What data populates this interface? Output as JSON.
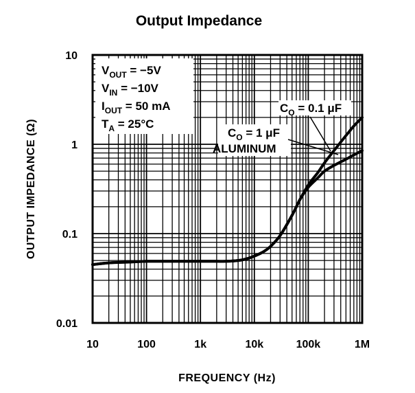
{
  "chart_data": {
    "type": "line",
    "title": "Output Impedance",
    "xlabel": "FREQUENCY (Hz)",
    "ylabel": "OUTPUT IMPEDANCE (Ω)",
    "x_scale": "log",
    "y_scale": "log",
    "xlim": [
      10,
      1000000
    ],
    "ylim": [
      0.01,
      10
    ],
    "x_ticks": [
      10,
      100,
      1000,
      10000,
      100000,
      1000000
    ],
    "x_tick_labels": [
      "10",
      "100",
      "1k",
      "10k",
      "100k",
      "1M"
    ],
    "y_ticks": [
      0.01,
      0.1,
      1,
      10
    ],
    "y_tick_labels": [
      "0.01",
      "0.1",
      "1",
      "10"
    ],
    "grid": true,
    "legend": "none",
    "conditions": {
      "vout": {
        "sym": "V",
        "sub": "OUT",
        "val": " = −5V"
      },
      "vin": {
        "sym": "V",
        "sub": "IN",
        "val": " = −10V"
      },
      "iout": {
        "sym": "I",
        "sub": "OUT",
        "val": " = 50 mA"
      },
      "ta": {
        "sym": "T",
        "sub": "A",
        "val": " = 25°C"
      }
    },
    "series": [
      {
        "name": "CO = 0.1 μF",
        "label": {
          "sym": "C",
          "sub": "O",
          "val": " = 0.1 μF"
        },
        "x": [
          10,
          20,
          50,
          100,
          200,
          500,
          1000,
          2000,
          3000,
          5000,
          7000,
          10000,
          15000,
          20000,
          30000,
          50000,
          70000,
          100000,
          150000,
          200000,
          300000,
          500000,
          700000,
          1000000
        ],
        "y": [
          0.045,
          0.047,
          0.048,
          0.049,
          0.049,
          0.049,
          0.049,
          0.049,
          0.049,
          0.05,
          0.052,
          0.056,
          0.063,
          0.072,
          0.095,
          0.16,
          0.24,
          0.35,
          0.48,
          0.62,
          0.85,
          1.25,
          1.6,
          2.0
        ]
      },
      {
        "name": "CO = 1 μF ALUMINUM",
        "label": {
          "sym": "C",
          "sub": "O",
          "val": " = 1 μF",
          "line2": "ALUMINUM"
        },
        "x": [
          10,
          20,
          50,
          100,
          200,
          500,
          1000,
          2000,
          3000,
          5000,
          7000,
          10000,
          15000,
          20000,
          30000,
          50000,
          70000,
          100000,
          150000,
          200000,
          300000,
          500000,
          700000,
          1000000
        ],
        "y": [
          0.045,
          0.047,
          0.048,
          0.049,
          0.049,
          0.049,
          0.049,
          0.049,
          0.049,
          0.05,
          0.052,
          0.056,
          0.063,
          0.072,
          0.095,
          0.16,
          0.24,
          0.33,
          0.42,
          0.5,
          0.58,
          0.68,
          0.76,
          0.85
        ]
      }
    ]
  }
}
